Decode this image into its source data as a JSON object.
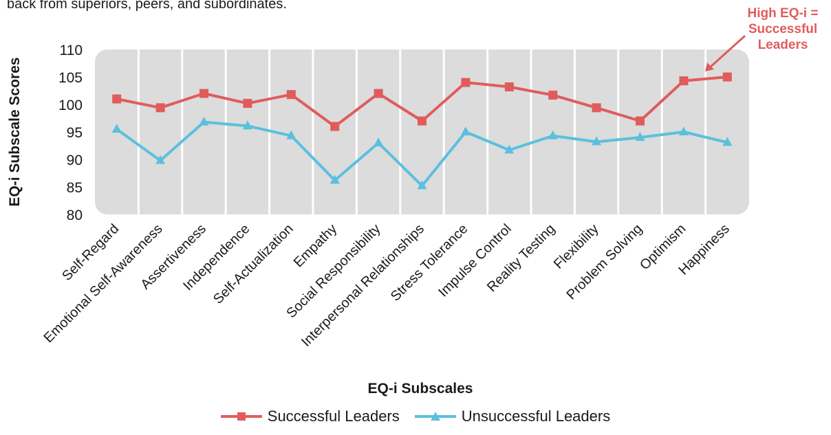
{
  "intro_text": "back from superiors, peers, and subordinates.",
  "annotation": {
    "lines": [
      "High EQ-i =",
      "Successful",
      "Leaders"
    ],
    "color": "#e05c5c"
  },
  "colors": {
    "plot_background": "#dcdcdc",
    "gridline": "#ffffff"
  },
  "chart_data": {
    "type": "line",
    "xlabel": "EQ-i Subscales",
    "ylabel": "EQ-i Subscale Scores",
    "ylim": [
      80,
      110
    ],
    "yticks": [
      80,
      85,
      90,
      95,
      100,
      105,
      110
    ],
    "grid": "vertical",
    "legend_position": "bottom",
    "categories": [
      "Self-Regard",
      "Emotional Self-Awareness",
      "Assertiveness",
      "Independence",
      "Self-Actualization",
      "Empathy",
      "Social Responsibility",
      "Interpersonal Relationships",
      "Stress Tolerance",
      "Impulse Control",
      "Reality Testing",
      "Flexibility",
      "Problem Solving",
      "Optimism",
      "Happiness"
    ],
    "series": [
      {
        "name": "Successful Leaders",
        "color": "#e05c5c",
        "marker": "square",
        "values": [
          101,
          99.4,
          102,
          100.2,
          101.8,
          96,
          102,
          97,
          104,
          103.2,
          101.7,
          99.4,
          97,
          104.3,
          105
        ]
      },
      {
        "name": "Unsuccessful Leaders",
        "color": "#5bc0de",
        "marker": "triangle",
        "values": [
          95.5,
          89.8,
          96.8,
          96.1,
          94.3,
          86.2,
          93,
          85.2,
          95,
          91.7,
          94.3,
          93.2,
          94,
          95,
          93.1
        ]
      }
    ]
  }
}
